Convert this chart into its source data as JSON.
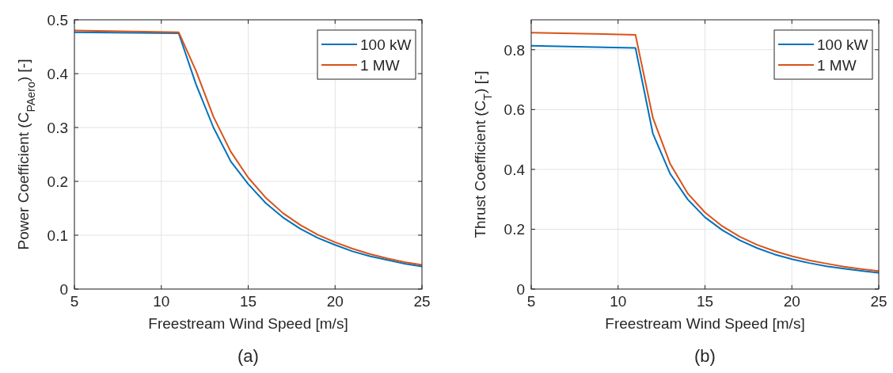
{
  "chart_data": [
    {
      "type": "line",
      "xlabel": "Freestream Wind Speed [m/s]",
      "ylabel": "Power Coefficient (C$_{PAero}$) [-]",
      "annotations": [
        "(a)"
      ],
      "x": [
        5,
        11,
        12,
        13,
        14,
        15,
        16,
        17,
        18,
        19,
        20,
        21,
        22,
        23,
        24,
        25
      ],
      "series": [
        {
          "name": "100 kW",
          "color": "#0072bd",
          "values": [
            0.477,
            0.475,
            0.38,
            0.3,
            0.237,
            0.195,
            0.16,
            0.133,
            0.112,
            0.095,
            0.082,
            0.07,
            0.061,
            0.054,
            0.047,
            0.042
          ]
        },
        {
          "name": "1 MW",
          "color": "#d95319",
          "values": [
            0.48,
            0.477,
            0.405,
            0.32,
            0.255,
            0.207,
            0.17,
            0.141,
            0.119,
            0.101,
            0.087,
            0.075,
            0.065,
            0.057,
            0.05,
            0.045
          ]
        }
      ],
      "xlim": [
        5,
        25
      ],
      "xticks": [
        5,
        10,
        15,
        20,
        25
      ],
      "ylim": [
        0,
        0.5
      ],
      "yticks": [
        0,
        0.1,
        0.2,
        0.3,
        0.4,
        0.5
      ],
      "grid": true,
      "legend": "top right"
    },
    {
      "type": "line",
      "xlabel": "Freestream Wind Speed [m/s]",
      "ylabel": "Thrust Coefficient (C$_{T}$) [-]",
      "annotations": [
        "(b)"
      ],
      "x": [
        5,
        11,
        12,
        13,
        14,
        15,
        16,
        17,
        18,
        19,
        20,
        21,
        22,
        23,
        24,
        25
      ],
      "series": [
        {
          "name": "100 kW",
          "color": "#0072bd",
          "values": [
            0.813,
            0.806,
            0.52,
            0.385,
            0.3,
            0.24,
            0.197,
            0.163,
            0.137,
            0.116,
            0.1,
            0.087,
            0.076,
            0.068,
            0.061,
            0.054
          ]
        },
        {
          "name": "1 MW",
          "color": "#d95319",
          "values": [
            0.857,
            0.85,
            0.573,
            0.418,
            0.32,
            0.256,
            0.21,
            0.175,
            0.148,
            0.127,
            0.11,
            0.096,
            0.085,
            0.075,
            0.067,
            0.06
          ]
        }
      ],
      "xlim": [
        5,
        25
      ],
      "xticks": [
        5,
        10,
        15,
        20,
        25
      ],
      "ylim": [
        0,
        0.9
      ],
      "yticks": [
        0,
        0.2,
        0.4,
        0.6,
        0.8
      ],
      "grid": true,
      "legend": "top right"
    }
  ]
}
